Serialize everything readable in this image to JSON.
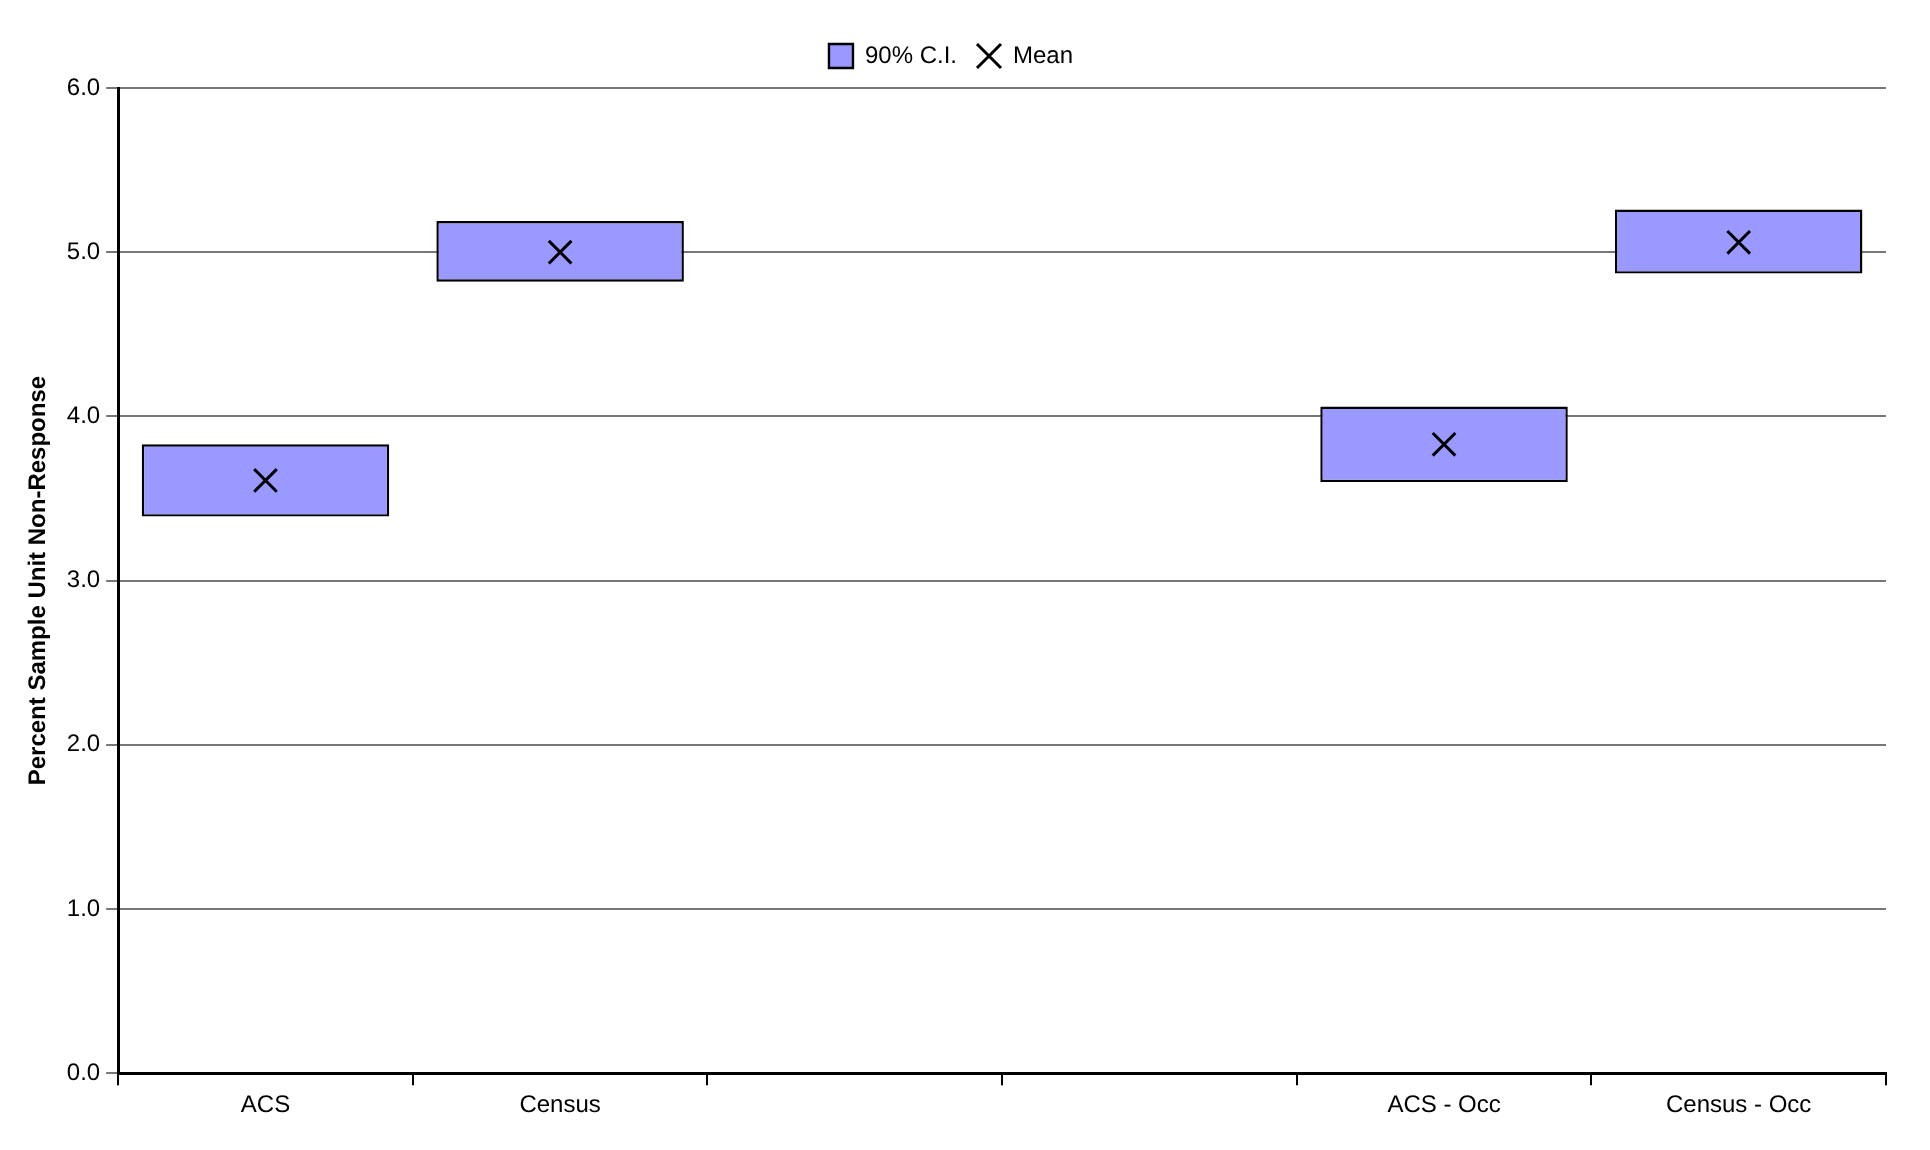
{
  "chart_data": {
    "type": "bar",
    "ylabel": "Percent Sample Unit Non-Response",
    "categories": [
      "ACS",
      "Census",
      null,
      null,
      "ACS - Occ",
      "Census - Occ"
    ],
    "series": [
      {
        "name": "90% C.I.",
        "color": "#9999ff",
        "values": [
          0.44,
          0.37,
          null,
          null,
          0.46,
          0.39
        ],
        "base": [
          3.39,
          4.82,
          null,
          null,
          3.6,
          4.87
        ]
      },
      {
        "name": "Mean",
        "type": "scatter",
        "color": "#000000",
        "marker": "cross",
        "values": [
          3.61,
          5.0,
          null,
          null,
          3.83,
          5.06
        ]
      }
    ],
    "ylim": [
      0,
      6
    ],
    "yticks": [
      {
        "value": 0,
        "label": "0.0"
      },
      {
        "value": 1,
        "label": "1.0"
      },
      {
        "value": 2,
        "label": "2.0"
      },
      {
        "value": 3,
        "label": "3.0"
      },
      {
        "value": 4,
        "label": "4.0"
      },
      {
        "value": 5,
        "label": "5.0"
      },
      {
        "value": 6,
        "label": "6.0"
      }
    ],
    "grid": "y",
    "legend": "top"
  }
}
